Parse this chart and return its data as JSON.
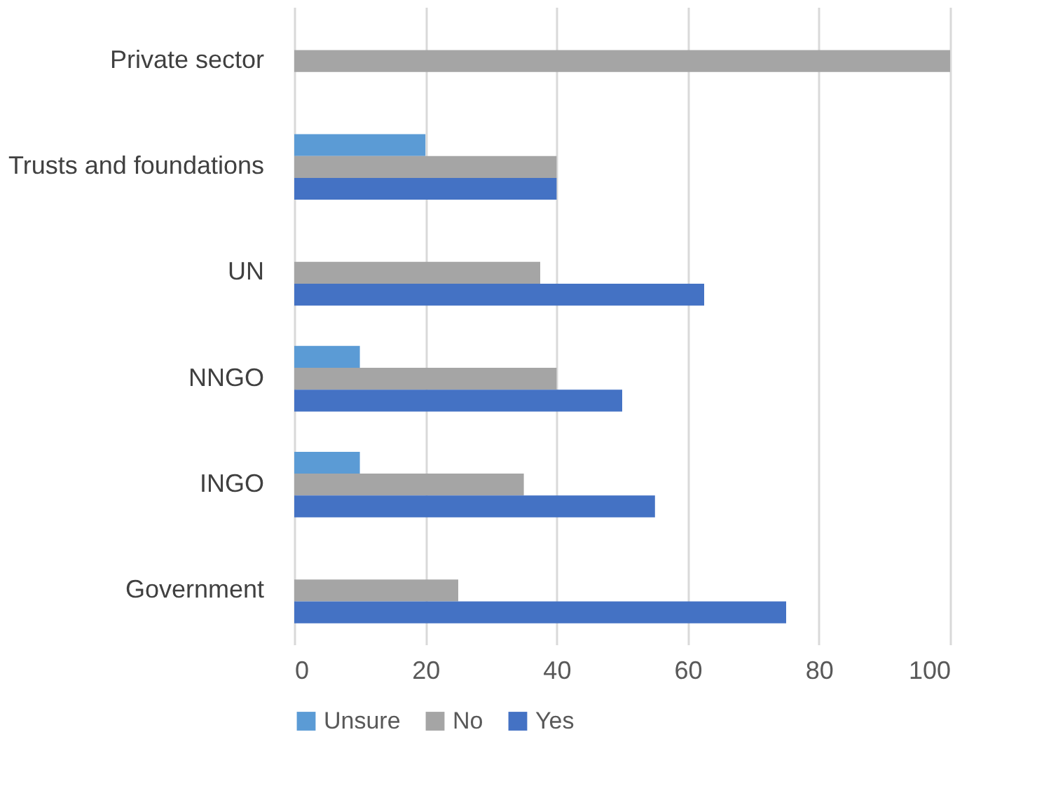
{
  "chart_data": {
    "type": "bar",
    "orientation": "horizontal",
    "categories": [
      "Private sector",
      "Trusts and foundations",
      "UN",
      "NNGO",
      "INGO",
      "Government"
    ],
    "series": [
      {
        "name": "Unsure",
        "color": "#5b9bd5",
        "values": [
          0,
          20,
          0,
          10,
          10,
          0
        ]
      },
      {
        "name": "No",
        "color": "#a5a5a5",
        "values": [
          100,
          40,
          37.5,
          40,
          35,
          25
        ]
      },
      {
        "name": "Yes",
        "color": "#4472c4",
        "values": [
          0,
          40,
          62.5,
          50,
          55,
          75
        ]
      }
    ],
    "xlim": [
      0,
      100
    ],
    "xticks": [
      0,
      20,
      40,
      60,
      80,
      100
    ],
    "grid": "x",
    "legend": "bottom"
  }
}
